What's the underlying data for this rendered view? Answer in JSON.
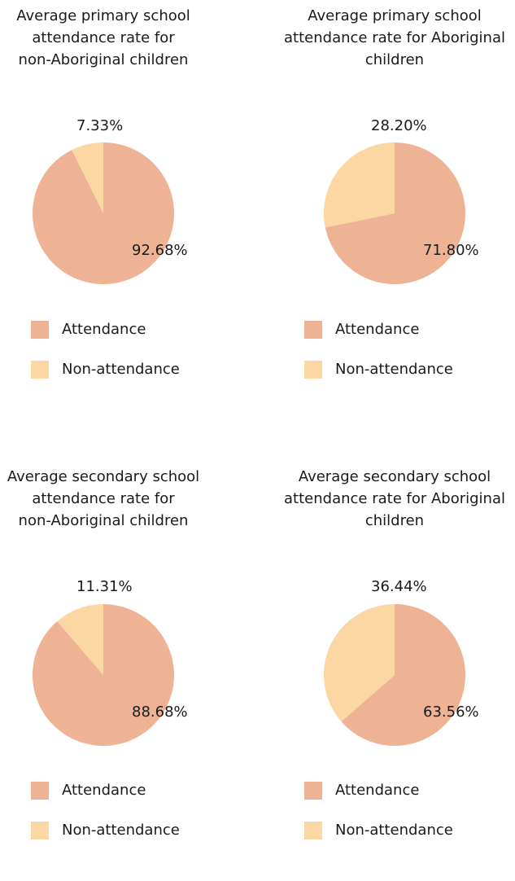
{
  "colors": {
    "attendance": "#EEB395",
    "non_attendance": "#FBD7A4"
  },
  "legend": {
    "attendance": "Attendance",
    "non_attendance": "Non-attendance"
  },
  "chart_data": [
    {
      "type": "pie",
      "title": "Average primary school\nattendance rate for\nnon-Aboriginal children",
      "categories": [
        "Attendance",
        "Non-attendance"
      ],
      "values": [
        92.68,
        7.33
      ],
      "labels": [
        "92.68%",
        "7.33%"
      ],
      "legend": "bottom"
    },
    {
      "type": "pie",
      "title": "Average primary school\nattendance rate for Aboriginal\nchildren",
      "categories": [
        "Attendance",
        "Non-attendance"
      ],
      "values": [
        71.8,
        28.2
      ],
      "labels": [
        "71.80%",
        "28.20%"
      ],
      "legend": "bottom"
    },
    {
      "type": "pie",
      "title": "Average secondary school\nattendance rate for\nnon-Aboriginal children",
      "categories": [
        "Attendance",
        "Non-attendance"
      ],
      "values": [
        88.68,
        11.31
      ],
      "labels": [
        "88.68%",
        "11.31%"
      ],
      "legend": "bottom"
    },
    {
      "type": "pie",
      "title": "Average secondary school\nattendance rate for Aboriginal\nchildren",
      "categories": [
        "Attendance",
        "Non-attendance"
      ],
      "values": [
        63.56,
        36.44
      ],
      "labels": [
        "63.56%",
        "36.44%"
      ],
      "legend": "bottom"
    }
  ]
}
